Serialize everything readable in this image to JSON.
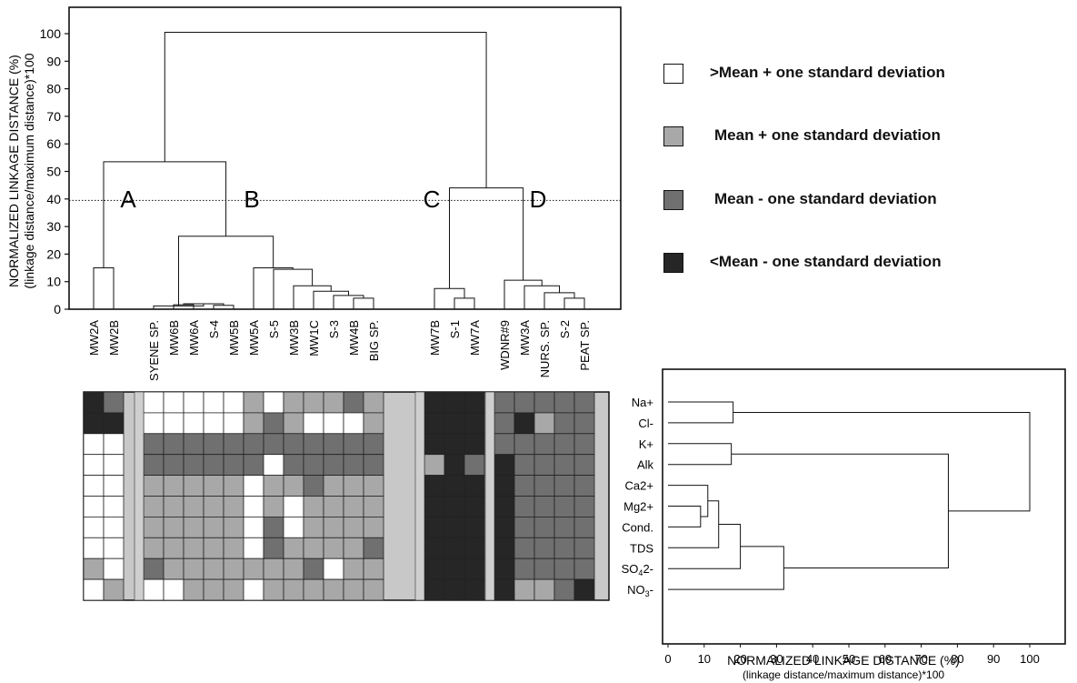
{
  "colors": {
    "4": "#ffffff",
    "3": "#a8a8a8",
    "2": "#707070",
    "1": "#262626"
  },
  "legend": [
    {
      "level": 4,
      "label": ">Mean + one standard deviation"
    },
    {
      "level": 3,
      "label": "Mean + one standard deviation"
    },
    {
      "level": 2,
      "label": "Mean - one standard deviation"
    },
    {
      "level": 1,
      "label": "<Mean - one standard deviation"
    }
  ],
  "chart_data": [
    {
      "type": "dendrogram",
      "orientation": "vertical",
      "ylabel": "NORMALIZED LINKAGE DISTANCE (%)",
      "ylabel2": "(linkage distance/maximum distance)*100",
      "ylim": [
        0,
        110
      ],
      "yticks": [
        0,
        10,
        20,
        30,
        40,
        50,
        60,
        70,
        80,
        90,
        100
      ],
      "cut_line": 39.5,
      "leaves": [
        "MW2A",
        "MW2B",
        "SYENE SP.",
        "MW6B",
        "MW6A",
        "S-4",
        "MW5B",
        "MW5A",
        "S-5",
        "MW3B",
        "MW1C",
        "S-3",
        "MW4B",
        "BIG SP.",
        "MW7B",
        "S-1",
        "MW7A",
        "WDNR#9",
        "MW3A",
        "NURS. SP.",
        "S-2",
        "PEAT SP."
      ],
      "cluster_labels": [
        "A",
        "B",
        "C",
        "D"
      ],
      "merges": [
        {
          "id": "n1",
          "a": "MW2A",
          "b": "MW2B",
          "h": 15
        },
        {
          "id": "n2",
          "a": "MW6B",
          "b": "MW6A",
          "h": 1.6
        },
        {
          "id": "n3",
          "a": "S-4",
          "b": "MW5B",
          "h": 1.4
        },
        {
          "id": "n4",
          "a": "n2",
          "b": "n3",
          "h": 2
        },
        {
          "id": "n5",
          "a": "SYENE SP.",
          "b": "n4",
          "h": 1.2
        },
        {
          "id": "n6",
          "a": "MW4B",
          "b": "BIG SP.",
          "h": 4
        },
        {
          "id": "n7",
          "a": "S-3",
          "b": "n6",
          "h": 5
        },
        {
          "id": "n8",
          "a": "MW1C",
          "b": "n7",
          "h": 6.5
        },
        {
          "id": "n9",
          "a": "MW3B",
          "b": "n8",
          "h": 8.5
        },
        {
          "id": "n10",
          "a": "S-5",
          "b": "n9",
          "h": 14.5
        },
        {
          "id": "n11",
          "a": "MW5A",
          "b": "n10",
          "h": 15
        },
        {
          "id": "n12",
          "a": "n5",
          "b": "n11",
          "h": 26.5
        },
        {
          "id": "n13",
          "a": "n1",
          "b": "n12",
          "h": 53.5
        },
        {
          "id": "n14",
          "a": "S-1",
          "b": "MW7A",
          "h": 4
        },
        {
          "id": "n15",
          "a": "MW7B",
          "b": "n14",
          "h": 7.5
        },
        {
          "id": "n16",
          "a": "S-2",
          "b": "PEAT SP.",
          "h": 4
        },
        {
          "id": "n17",
          "a": "NURS. SP.",
          "b": "n16",
          "h": 6
        },
        {
          "id": "n18",
          "a": "MW3A",
          "b": "n17",
          "h": 8.5
        },
        {
          "id": "n19",
          "a": "WDNR#9",
          "b": "n18",
          "h": 10.5
        },
        {
          "id": "n20",
          "a": "n15",
          "b": "n19",
          "h": 44
        },
        {
          "id": "n21",
          "a": "n13",
          "b": "n20",
          "h": 100.5
        }
      ]
    },
    {
      "type": "heatmap",
      "columns": [
        "MW2A",
        "MW2B",
        "SYENE SP.",
        "MW6B",
        "MW6A",
        "S-4",
        "MW5B",
        "MW5A",
        "S-5",
        "MW3B",
        "MW1C",
        "S-3",
        "MW4B",
        "BIG SP.",
        "MW7B",
        "S-1",
        "MW7A",
        "WDNR#9",
        "MW3A",
        "NURS. SP.",
        "S-2",
        "PEAT SP."
      ],
      "rows": [
        "Na+",
        "Cl-",
        "K+",
        "Alk",
        "Ca2+",
        "Mg2+",
        "Cond.",
        "TDS",
        "SO42-",
        "NO3-"
      ],
      "values": [
        [
          1,
          2,
          4,
          4,
          4,
          4,
          4,
          3,
          4,
          3,
          3,
          3,
          2,
          3,
          1,
          1,
          1,
          2,
          2,
          2,
          2,
          2
        ],
        [
          1,
          1,
          4,
          4,
          4,
          4,
          4,
          3,
          2,
          3,
          4,
          4,
          4,
          3,
          1,
          1,
          1,
          2,
          1,
          3,
          2,
          2
        ],
        [
          4,
          4,
          2,
          2,
          2,
          2,
          2,
          2,
          2,
          2,
          2,
          2,
          2,
          2,
          1,
          1,
          1,
          2,
          2,
          2,
          2,
          2
        ],
        [
          4,
          4,
          2,
          2,
          2,
          2,
          2,
          2,
          4,
          2,
          2,
          2,
          2,
          2,
          3,
          1,
          2,
          1,
          2,
          2,
          2,
          2
        ],
        [
          4,
          4,
          3,
          3,
          3,
          3,
          3,
          4,
          3,
          3,
          2,
          3,
          3,
          3,
          1,
          1,
          1,
          1,
          2,
          2,
          2,
          2
        ],
        [
          4,
          4,
          3,
          3,
          3,
          3,
          3,
          4,
          3,
          4,
          3,
          3,
          3,
          3,
          1,
          1,
          1,
          1,
          2,
          2,
          2,
          2
        ],
        [
          4,
          4,
          3,
          3,
          3,
          3,
          3,
          4,
          2,
          4,
          3,
          3,
          3,
          3,
          1,
          1,
          1,
          1,
          2,
          2,
          2,
          2
        ],
        [
          4,
          4,
          3,
          3,
          3,
          3,
          3,
          4,
          2,
          3,
          3,
          3,
          3,
          2,
          1,
          1,
          1,
          1,
          2,
          2,
          2,
          2
        ],
        [
          3,
          4,
          2,
          3,
          3,
          3,
          3,
          3,
          3,
          3,
          2,
          4,
          3,
          3,
          1,
          1,
          1,
          1,
          2,
          2,
          2,
          2
        ],
        [
          4,
          3,
          4,
          4,
          3,
          3,
          3,
          4,
          3,
          3,
          3,
          3,
          3,
          3,
          1,
          1,
          1,
          1,
          3,
          3,
          2,
          1
        ]
      ]
    },
    {
      "type": "dendrogram",
      "orientation": "horizontal",
      "xlabel": "NORMALIZED LINKAGE DISTANCE (%)",
      "xlabel2": "(linkage distance/maximum distance)*100",
      "xlim": [
        0,
        110
      ],
      "xticks": [
        0,
        10,
        20,
        30,
        40,
        50,
        60,
        70,
        80,
        90,
        100
      ],
      "leaves": [
        "Na+",
        "Cl-",
        "K+",
        "Alk",
        "Ca2+",
        "Mg2+",
        "Cond.",
        "TDS",
        "SO42-",
        "NO3-"
      ],
      "merges": [
        {
          "id": "m1",
          "a": "Na+",
          "b": "Cl-",
          "h": 18
        },
        {
          "id": "m2",
          "a": "K+",
          "b": "Alk",
          "h": 17.5
        },
        {
          "id": "m3",
          "a": "Mg2+",
          "b": "Cond.",
          "h": 9
        },
        {
          "id": "m4",
          "a": "Ca2+",
          "b": "m3",
          "h": 11
        },
        {
          "id": "m5",
          "a": "m4",
          "b": "TDS",
          "h": 14
        },
        {
          "id": "m6",
          "a": "m5",
          "b": "SO42-",
          "h": 20
        },
        {
          "id": "m7",
          "a": "m6",
          "b": "NO3-",
          "h": 32
        },
        {
          "id": "m8",
          "a": "m2",
          "b": "m7",
          "h": 77.5
        },
        {
          "id": "m9",
          "a": "m1",
          "b": "m8",
          "h": 100
        }
      ]
    }
  ]
}
